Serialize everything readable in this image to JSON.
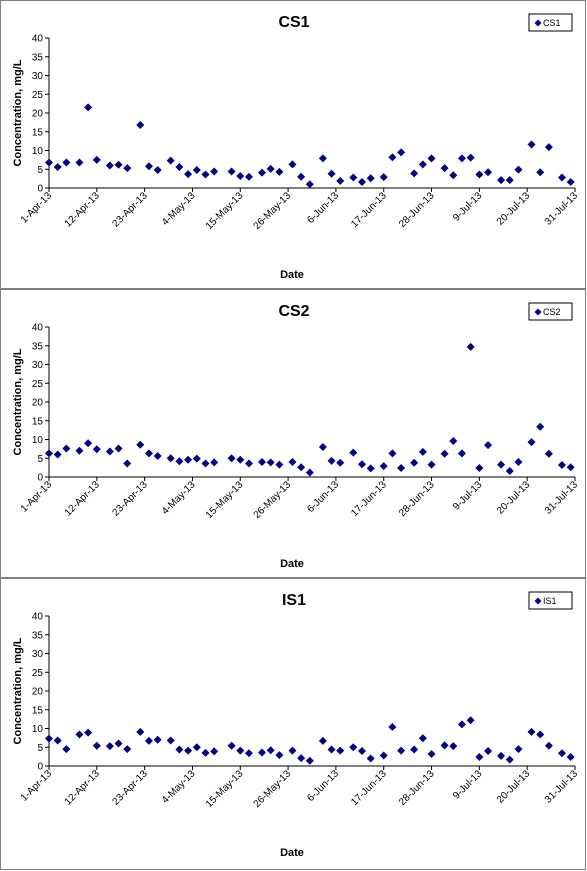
{
  "chart_data": [
    {
      "type": "scatter",
      "title": "CS1",
      "xlabel": "Date",
      "ylabel": "Concentration, mg/L",
      "ylim": [
        0,
        40
      ],
      "yticks": [
        0,
        5,
        10,
        15,
        20,
        25,
        30,
        35,
        40
      ],
      "xticks": [
        "1-Apr-13",
        "12-Apr-13",
        "23-Apr-13",
        "4-May-13",
        "15-May-13",
        "26-May-13",
        "6-Jun-13",
        "17-Jun-13",
        "28-Jun-13",
        "9-Jul-13",
        "20-Jul-13",
        "31-Jul-13"
      ],
      "xlim": [
        "2013-04-01",
        "2013-07-31"
      ],
      "grid": false,
      "legend_position": "top-right",
      "marker": "diamond",
      "color": "#000080",
      "series": [
        {
          "name": "CS1",
          "x": [
            "2013-04-01",
            "2013-04-03",
            "2013-04-05",
            "2013-04-08",
            "2013-04-10",
            "2013-04-12",
            "2013-04-15",
            "2013-04-17",
            "2013-04-19",
            "2013-04-22",
            "2013-04-24",
            "2013-04-26",
            "2013-04-29",
            "2013-05-01",
            "2013-05-03",
            "2013-05-05",
            "2013-05-07",
            "2013-05-09",
            "2013-05-13",
            "2013-05-15",
            "2013-05-17",
            "2013-05-20",
            "2013-05-22",
            "2013-05-24",
            "2013-05-27",
            "2013-05-29",
            "2013-05-31",
            "2013-06-03",
            "2013-06-05",
            "2013-06-07",
            "2013-06-10",
            "2013-06-12",
            "2013-06-14",
            "2013-06-17",
            "2013-06-19",
            "2013-06-21",
            "2013-06-24",
            "2013-06-26",
            "2013-06-28",
            "2013-07-01",
            "2013-07-03",
            "2013-07-05",
            "2013-07-07",
            "2013-07-09",
            "2013-07-11",
            "2013-07-14",
            "2013-07-16",
            "2013-07-18",
            "2013-07-21",
            "2013-07-23",
            "2013-07-25",
            "2013-07-28",
            "2013-07-30"
          ],
          "y": [
            6.8,
            5.6,
            6.8,
            6.8,
            21.5,
            7.5,
            6.0,
            6.2,
            5.3,
            16.8,
            5.8,
            4.8,
            7.3,
            5.6,
            3.7,
            4.8,
            3.6,
            4.4,
            4.4,
            3.2,
            3.0,
            4.1,
            5.1,
            4.3,
            6.3,
            3.0,
            1.0,
            7.9,
            3.8,
            1.9,
            2.8,
            1.6,
            2.6,
            2.9,
            8.2,
            9.5,
            3.9,
            6.3,
            7.9,
            5.3,
            3.4,
            7.9,
            8.1,
            3.6,
            4.2,
            2.1,
            2.1,
            4.9,
            11.6,
            4.2,
            10.9,
            2.8,
            1.6
          ]
        }
      ]
    },
    {
      "type": "scatter",
      "title": "CS2",
      "xlabel": "Date",
      "ylabel": "Concentration, mg/L",
      "ylim": [
        0,
        40
      ],
      "yticks": [
        0,
        5,
        10,
        15,
        20,
        25,
        30,
        35,
        40
      ],
      "xticks": [
        "1-Apr-13",
        "12-Apr-13",
        "23-Apr-13",
        "4-May-13",
        "15-May-13",
        "26-May-13",
        "6-Jun-13",
        "17-Jun-13",
        "28-Jun-13",
        "9-Jul-13",
        "20-Jul-13",
        "31-Jul-13"
      ],
      "xlim": [
        "2013-04-01",
        "2013-07-31"
      ],
      "grid": false,
      "legend_position": "top-right",
      "marker": "diamond",
      "color": "#000080",
      "series": [
        {
          "name": "CS2",
          "x": [
            "2013-04-01",
            "2013-04-03",
            "2013-04-05",
            "2013-04-08",
            "2013-04-10",
            "2013-04-12",
            "2013-04-15",
            "2013-04-17",
            "2013-04-19",
            "2013-04-22",
            "2013-04-24",
            "2013-04-26",
            "2013-04-29",
            "2013-05-01",
            "2013-05-03",
            "2013-05-05",
            "2013-05-07",
            "2013-05-09",
            "2013-05-13",
            "2013-05-15",
            "2013-05-17",
            "2013-05-20",
            "2013-05-22",
            "2013-05-24",
            "2013-05-27",
            "2013-05-29",
            "2013-05-31",
            "2013-06-03",
            "2013-06-05",
            "2013-06-07",
            "2013-06-10",
            "2013-06-12",
            "2013-06-14",
            "2013-06-17",
            "2013-06-19",
            "2013-06-21",
            "2013-06-24",
            "2013-06-26",
            "2013-06-28",
            "2013-07-01",
            "2013-07-03",
            "2013-07-05",
            "2013-07-07",
            "2013-07-09",
            "2013-07-11",
            "2013-07-14",
            "2013-07-16",
            "2013-07-18",
            "2013-07-21",
            "2013-07-23",
            "2013-07-25",
            "2013-07-28",
            "2013-07-30"
          ],
          "y": [
            6.3,
            6.0,
            7.6,
            7.0,
            9.0,
            7.4,
            6.8,
            7.6,
            3.6,
            8.6,
            6.3,
            5.6,
            5.0,
            4.2,
            4.6,
            4.9,
            3.6,
            3.9,
            5.0,
            4.6,
            3.6,
            4.0,
            3.9,
            3.3,
            4.0,
            2.6,
            1.2,
            8.0,
            4.3,
            3.8,
            6.5,
            3.4,
            2.3,
            2.9,
            6.3,
            2.4,
            3.8,
            6.7,
            3.3,
            6.2,
            9.6,
            6.3,
            34.7,
            2.4,
            8.5,
            3.3,
            1.6,
            4.0,
            9.3,
            13.4,
            6.2,
            3.2,
            2.6
          ]
        }
      ]
    },
    {
      "type": "scatter",
      "title": "IS1",
      "xlabel": "Date",
      "ylabel": "Concentration, mg/L",
      "ylim": [
        0,
        40
      ],
      "yticks": [
        0,
        5,
        10,
        15,
        20,
        25,
        30,
        35,
        40
      ],
      "xticks": [
        "1-Apr-13",
        "12-Apr-13",
        "23-Apr-13",
        "4-May-13",
        "15-May-13",
        "26-May-13",
        "6-Jun-13",
        "17-Jun-13",
        "28-Jun-13",
        "9-Jul-13",
        "20-Jul-13",
        "31-Jul-13"
      ],
      "xlim": [
        "2013-04-01",
        "2013-07-31"
      ],
      "grid": false,
      "legend_position": "top-right",
      "marker": "diamond",
      "color": "#000080",
      "series": [
        {
          "name": "IS1",
          "x": [
            "2013-04-01",
            "2013-04-03",
            "2013-04-05",
            "2013-04-08",
            "2013-04-10",
            "2013-04-12",
            "2013-04-15",
            "2013-04-17",
            "2013-04-19",
            "2013-04-22",
            "2013-04-24",
            "2013-04-26",
            "2013-04-29",
            "2013-05-01",
            "2013-05-03",
            "2013-05-05",
            "2013-05-07",
            "2013-05-09",
            "2013-05-13",
            "2013-05-15",
            "2013-05-17",
            "2013-05-20",
            "2013-05-22",
            "2013-05-24",
            "2013-05-27",
            "2013-05-29",
            "2013-05-31",
            "2013-06-03",
            "2013-06-05",
            "2013-06-07",
            "2013-06-10",
            "2013-06-12",
            "2013-06-14",
            "2013-06-17",
            "2013-06-19",
            "2013-06-21",
            "2013-06-24",
            "2013-06-26",
            "2013-06-28",
            "2013-07-01",
            "2013-07-03",
            "2013-07-05",
            "2013-07-07",
            "2013-07-09",
            "2013-07-11",
            "2013-07-14",
            "2013-07-16",
            "2013-07-18",
            "2013-07-21",
            "2013-07-23",
            "2013-07-25",
            "2013-07-28",
            "2013-07-30"
          ],
          "y": [
            7.3,
            6.8,
            4.5,
            8.4,
            8.9,
            5.4,
            5.3,
            6.0,
            4.5,
            9.1,
            6.7,
            7.0,
            6.8,
            4.4,
            4.1,
            5.0,
            3.5,
            3.9,
            5.4,
            4.1,
            3.4,
            3.6,
            4.2,
            2.9,
            4.1,
            2.1,
            1.4,
            6.7,
            4.4,
            4.1,
            5.0,
            4.0,
            2.0,
            2.8,
            10.4,
            4.1,
            4.4,
            7.4,
            3.2,
            5.5,
            5.3,
            11.1,
            12.2,
            2.4,
            4.0,
            2.7,
            1.7,
            4.5,
            9.1,
            8.4,
            5.4,
            3.4,
            2.4
          ]
        }
      ]
    }
  ]
}
